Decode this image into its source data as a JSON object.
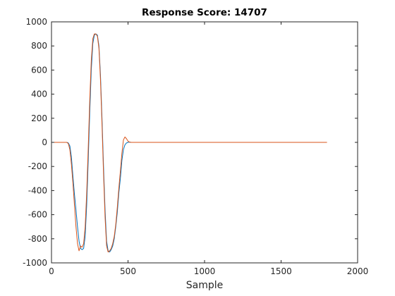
{
  "chart_data": {
    "type": "line",
    "title": "Response Score: 14707",
    "xlabel": "Sample",
    "ylabel": "",
    "xlim": [
      0,
      2000
    ],
    "ylim": [
      -1000,
      1000
    ],
    "xticks": [
      0,
      500,
      1000,
      1500,
      2000
    ],
    "yticks": [
      -1000,
      -800,
      -600,
      -400,
      -200,
      0,
      200,
      400,
      600,
      800,
      1000
    ],
    "grid": false,
    "legend": "none",
    "series": [
      {
        "color": "#0072bd",
        "x": [
          0,
          100,
          110,
          120,
          130,
          140,
          150,
          160,
          170,
          180,
          190,
          200,
          210,
          220,
          230,
          240,
          250,
          260,
          270,
          280,
          290,
          300,
          310,
          320,
          330,
          340,
          350,
          360,
          370,
          380,
          390,
          400,
          410,
          420,
          430,
          440,
          450,
          460,
          470,
          480,
          490,
          500,
          510,
          520,
          530,
          1440
        ],
        "y": [
          0,
          0,
          -5,
          -30,
          -120,
          -280,
          -430,
          -560,
          -700,
          -820,
          -880,
          -890,
          -880,
          -780,
          -520,
          -150,
          250,
          600,
          820,
          890,
          900,
          890,
          800,
          560,
          200,
          -200,
          -560,
          -820,
          -900,
          -910,
          -890,
          -860,
          -800,
          -700,
          -580,
          -420,
          -300,
          -150,
          -60,
          -20,
          -5,
          0,
          2,
          0,
          0,
          0
        ]
      },
      {
        "color": "#d95319",
        "x": [
          0,
          100,
          110,
          120,
          130,
          140,
          150,
          160,
          170,
          180,
          190,
          200,
          210,
          220,
          230,
          240,
          250,
          260,
          270,
          280,
          290,
          300,
          310,
          320,
          330,
          340,
          350,
          360,
          370,
          380,
          390,
          400,
          410,
          420,
          430,
          440,
          450,
          460,
          470,
          480,
          490,
          500,
          510,
          520,
          530,
          550,
          1800
        ],
        "y": [
          0,
          0,
          -10,
          -60,
          -180,
          -340,
          -520,
          -700,
          -840,
          -900,
          -860,
          -870,
          -840,
          -700,
          -420,
          -50,
          350,
          680,
          860,
          900,
          900,
          880,
          780,
          520,
          150,
          -260,
          -620,
          -860,
          -910,
          -900,
          -880,
          -840,
          -780,
          -680,
          -540,
          -380,
          -240,
          -90,
          20,
          45,
          30,
          10,
          2,
          0,
          0,
          0,
          0
        ]
      }
    ]
  }
}
